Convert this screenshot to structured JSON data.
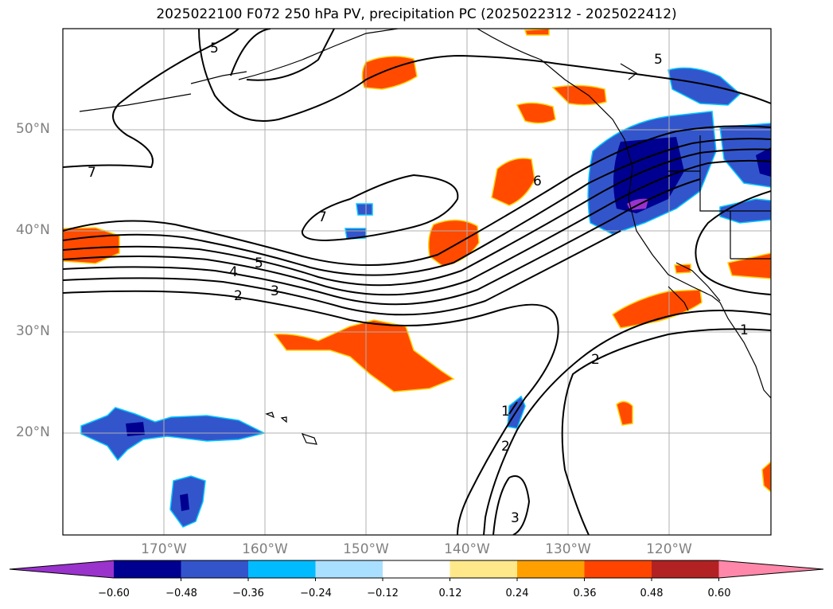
{
  "title": "2025022100 F072 250 hPa PV, precipitation PC (2025022312 - 2025022412)",
  "map": {
    "lat_labels": [
      "50°N",
      "40°N",
      "30°N",
      "20°N"
    ],
    "lon_labels": [
      "170°W",
      "160°W",
      "150°W",
      "140°W",
      "130°W",
      "120°W"
    ],
    "contour_labels": [
      "5",
      "7",
      "7",
      "6",
      "5",
      "4",
      "3",
      "2",
      "5",
      "2",
      "1",
      "1",
      "2",
      "3"
    ]
  },
  "colorbar": {
    "ticks": [
      "−0.60",
      "−0.48",
      "−0.36",
      "−0.24",
      "−0.12",
      "0.12",
      "0.24",
      "0.36",
      "0.48",
      "0.60"
    ],
    "colors": [
      "#9933cc",
      "#000090",
      "#3355cc",
      "#00bbff",
      "#aae0ff",
      "#ffffff",
      "#ffe88a",
      "#ffa000",
      "#ff4400",
      "#b22222",
      "#ff88aa"
    ]
  }
}
